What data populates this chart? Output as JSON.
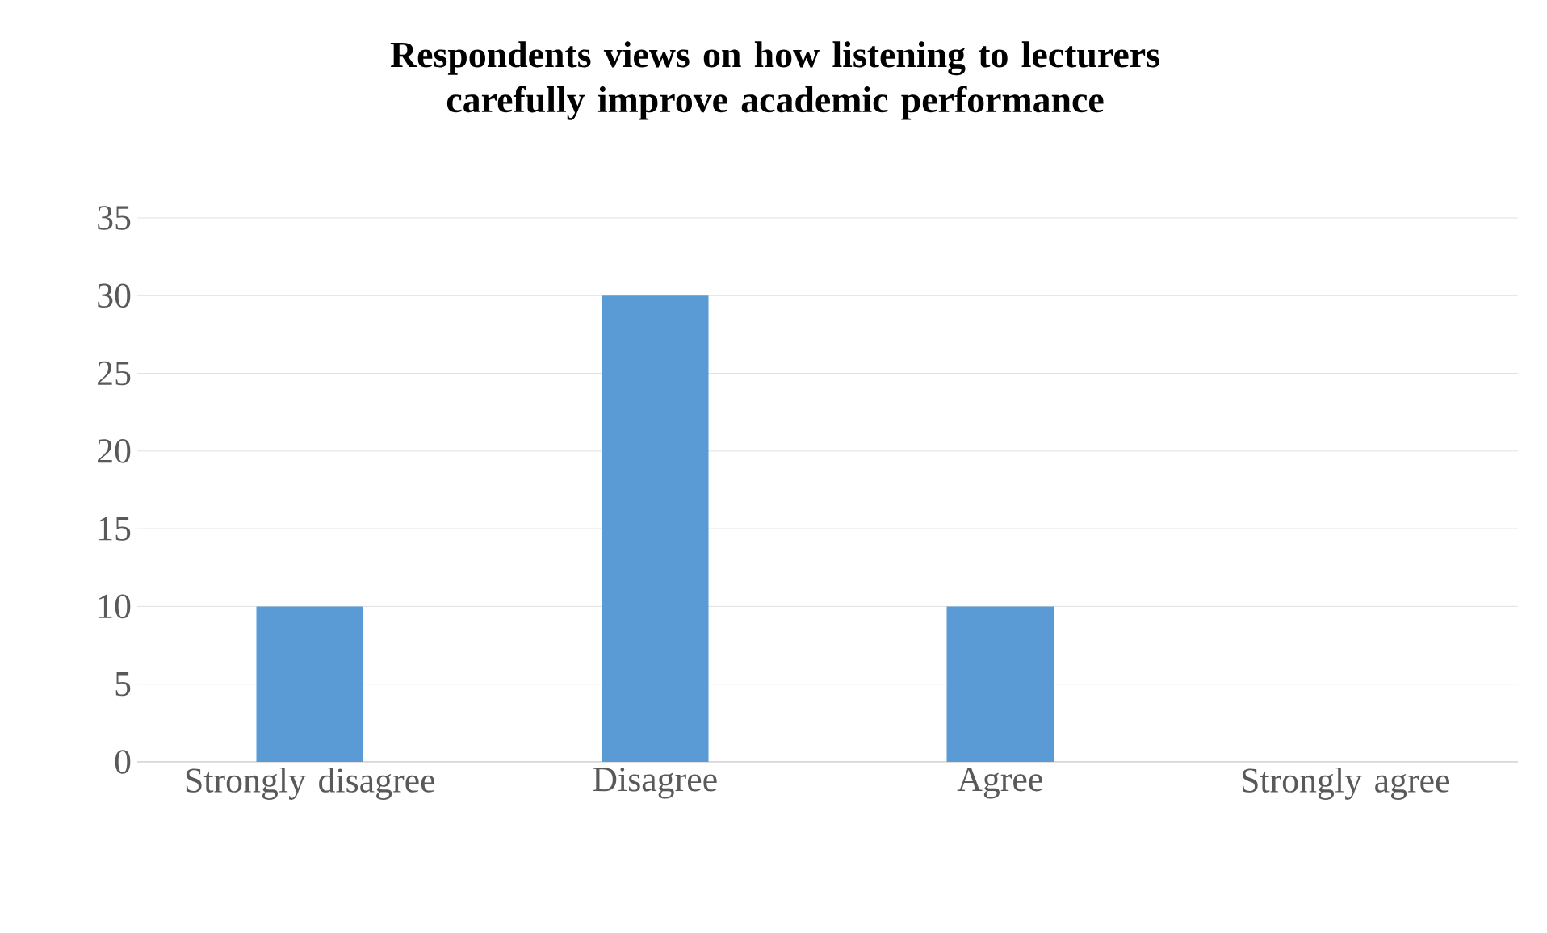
{
  "chart_data": {
    "type": "bar",
    "title": "Respondents views on how listening to lecturers carefully improve academic performance",
    "categories": [
      "Strongly disagree",
      "Disagree",
      "Agree",
      "Strongly agree"
    ],
    "values": [
      10,
      30,
      10,
      0
    ],
    "color": "#5b9bd5",
    "ylim": [
      0,
      35
    ],
    "yticks": [
      0,
      5,
      10,
      15,
      20,
      25,
      30,
      35
    ],
    "grid": "y"
  }
}
